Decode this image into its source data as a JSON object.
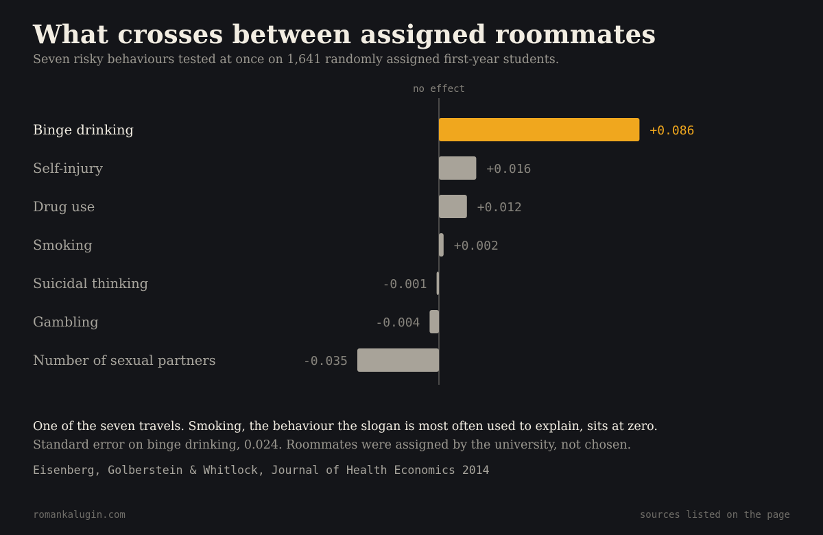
{
  "header": {
    "title": "What crosses between assigned roommates",
    "subtitle": "Seven risky behaviours tested at once on 1,641 randomly assigned first-year students."
  },
  "chart_data": {
    "type": "bar",
    "orientation": "horizontal",
    "zero_label": "no effect",
    "categories": [
      "Binge drinking",
      "Self-injury",
      "Drug use",
      "Smoking",
      "Suicidal thinking",
      "Gambling",
      "Number of sexual partners"
    ],
    "values": [
      0.086,
      0.016,
      0.012,
      0.002,
      -0.001,
      -0.004,
      -0.035
    ],
    "value_labels": [
      "+0.086",
      "+0.016",
      "+0.012",
      "+0.002",
      "-0.001",
      "-0.004",
      "-0.035"
    ],
    "highlight_index": 0,
    "grid": false,
    "colors": {
      "highlight": "#f0a71e",
      "bar": "#a8a399",
      "highlight_text": "#f0a71e",
      "label": "#a8a59d",
      "label_highlight": "#f2ede2",
      "value_text": "#86837c",
      "zero_line": "#5c5b58",
      "zero_label": "#86837c"
    }
  },
  "footer": {
    "note_main": "One of the seven travels. Smoking, the behaviour the slogan is most often used to explain, sits at zero.",
    "note_sub": "Standard error on binge drinking, 0.024. Roommates were assigned by the university, not chosen.",
    "citation": "Eisenberg, Golberstein & Whitlock, Journal of Health Economics 2014",
    "site": "romankalugin.com",
    "sources": "sources listed on the page"
  }
}
